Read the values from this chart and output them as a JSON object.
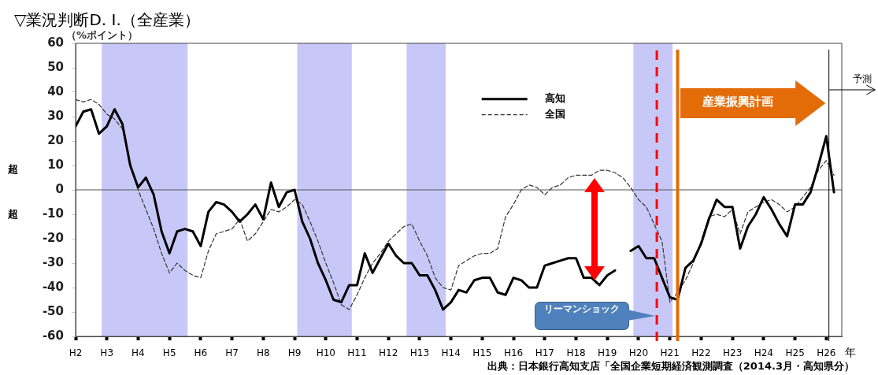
{
  "chart_data": {
    "type": "line",
    "title": "▽業況判断D. I.（全産業）",
    "ylabel": "（%ポイント）",
    "xlabel": "年",
    "annotations": [
      "超",
      "超",
      "出典：日本銀行高知支店「全国企業短期経済観測調査（2014.3月・高知県分）"
    ],
    "x": [
      "1990-01",
      "1990-04",
      "1990-07",
      "1990-10",
      "1991-01",
      "1991-04",
      "1991-07",
      "1991-10",
      "1992-01",
      "1992-04",
      "1992-07",
      "1992-10",
      "1993-01",
      "1993-04",
      "1993-07",
      "1993-10",
      "1994-01",
      "1994-04",
      "1994-07",
      "1994-10",
      "1995-01",
      "1995-04",
      "1995-07",
      "1995-10",
      "1996-01",
      "1996-04",
      "1996-07",
      "1996-10",
      "1997-01",
      "1997-04",
      "1997-07",
      "1997-10",
      "1998-01",
      "1998-04",
      "1998-07",
      "1998-10",
      "1999-01",
      "1999-04",
      "1999-07",
      "1999-10",
      "2000-01",
      "2000-04",
      "2000-07",
      "2000-10",
      "2001-01",
      "2001-04",
      "2001-07",
      "2001-10",
      "2002-01",
      "2002-04",
      "2002-07",
      "2002-10",
      "2003-01",
      "2003-04",
      "2003-07",
      "2003-10",
      "2004-01",
      "2004-04",
      "2004-07",
      "2004-10",
      "2005-01",
      "2005-04",
      "2005-07",
      "2005-10",
      "2006-01",
      "2006-04",
      "2006-07",
      "2006-10",
      "2007-01",
      "2007-04",
      "2007-07",
      "2007-10",
      "2008-01",
      "2008-04",
      "2008-07",
      "2008-10",
      "2009-01",
      "2009-04",
      "2009-07",
      "2009-10",
      "2010-01",
      "2010-04",
      "2010-07",
      "2010-10",
      "2011-01",
      "2011-04",
      "2011-07",
      "2011-10",
      "2012-01",
      "2012-04",
      "2012-07",
      "2012-10",
      "2013-01",
      "2013-04",
      "2013-07",
      "2013-10",
      "2014-01",
      "2014-04"
    ],
    "series": [
      {
        "name": "高知",
        "color": "#000000",
        "line_style": "solid",
        "values": [
          26,
          32,
          33,
          23,
          26,
          33,
          27,
          10,
          1,
          5,
          -2,
          -17,
          -26,
          -17,
          -16,
          -17,
          -23,
          -9,
          -5,
          -6,
          -9,
          -13,
          -10,
          -6,
          -12,
          3,
          -7,
          -1,
          0,
          -13,
          -20,
          -30,
          -37,
          -45,
          -46,
          -39,
          -39,
          -26,
          -34,
          -28,
          -22,
          -27,
          -30,
          -30,
          -35,
          -35,
          -41,
          -49,
          -46,
          -41,
          -42,
          -37,
          -36,
          -36,
          -42,
          -43,
          -36,
          -37,
          -40,
          -40,
          -31,
          -30,
          -29,
          -28,
          -28,
          -36,
          -36,
          -39,
          -35,
          -33,
          null,
          -25,
          -23,
          -28,
          -28,
          -36,
          -44,
          -45,
          -32,
          -29,
          -22,
          -12,
          -4,
          -7,
          -7,
          -24,
          -15,
          -10,
          -3,
          -8,
          -14,
          -19,
          -6,
          -6,
          -1,
          10,
          22,
          -1
        ]
      },
      {
        "name": "全国",
        "color": "#333333",
        "line_style": "dashed",
        "values": [
          37,
          36,
          37,
          35,
          31,
          29,
          25,
          11,
          0,
          -8,
          -16,
          -26,
          -34,
          -30,
          -33,
          -35,
          -36,
          -25,
          -18,
          -17,
          -16,
          -12,
          -21,
          -18,
          -13,
          -8,
          -9,
          -7,
          -4,
          -6,
          -13,
          -21,
          -30,
          -38,
          -47,
          -49,
          -43,
          -36,
          -30,
          -26,
          -21,
          -18,
          -15,
          -14,
          -21,
          -27,
          -36,
          -40,
          -41,
          -31,
          -29,
          -27,
          -26,
          -26,
          -24,
          -11,
          -6,
          0,
          2,
          1,
          -2,
          1,
          2,
          5,
          6,
          6,
          6,
          8,
          8,
          7,
          5,
          1,
          -4,
          -7,
          -14,
          -21,
          -46,
          -42,
          -37,
          -30,
          -21,
          -11,
          -10,
          -11,
          -8,
          -18,
          -9,
          -7,
          -5,
          -4,
          -6,
          -9,
          -7,
          -3,
          1,
          8,
          12,
          6
        ]
      }
    ],
    "xlim": [
      "1990-01",
      "2014-07"
    ],
    "xticks": [
      {
        "value": "1990",
        "label": "H2"
      },
      {
        "value": "1991",
        "label": "H3"
      },
      {
        "value": "1992",
        "label": "H4"
      },
      {
        "value": "1993",
        "label": "H5"
      },
      {
        "value": "1994",
        "label": "H6"
      },
      {
        "value": "1995",
        "label": "H7"
      },
      {
        "value": "1996",
        "label": "H8"
      },
      {
        "value": "1997",
        "label": "H9"
      },
      {
        "value": "1998",
        "label": "H10"
      },
      {
        "value": "1999",
        "label": "H11"
      },
      {
        "value": "2000",
        "label": "H12"
      },
      {
        "value": "2001",
        "label": "H13"
      },
      {
        "value": "2002",
        "label": "H14"
      },
      {
        "value": "2003",
        "label": "H15"
      },
      {
        "value": "2004",
        "label": "H16"
      },
      {
        "value": "2005",
        "label": "H17"
      },
      {
        "value": "2006",
        "label": "H18"
      },
      {
        "value": "2007",
        "label": "H19"
      },
      {
        "value": "2008",
        "label": "H20"
      },
      {
        "value": "2009",
        "label": "H21"
      },
      {
        "value": "2010",
        "label": "H22"
      },
      {
        "value": "2011",
        "label": "H23"
      },
      {
        "value": "2012",
        "label": "H24"
      },
      {
        "value": "2013",
        "label": "H25"
      },
      {
        "value": "2014",
        "label": "H26"
      }
    ],
    "ylim": [
      -60,
      60
    ],
    "yticks": [
      -60,
      -50,
      -40,
      -30,
      -20,
      -10,
      0,
      10,
      20,
      30,
      40,
      50,
      60
    ],
    "bands": [
      {
        "axis": "x",
        "from": "1990-11",
        "to": "1993-08",
        "color": "#c8c8f8"
      },
      {
        "axis": "x",
        "from": "1997-02",
        "to": "1998-11",
        "color": "#c8c8f8"
      },
      {
        "axis": "x",
        "from": "2000-08",
        "to": "2001-11",
        "color": "#c8c8f8"
      },
      {
        "axis": "x",
        "from": "2007-11",
        "to": "2009-02",
        "color": "#c8c8f8"
      }
    ],
    "ref_lines": [
      {
        "axis": "y",
        "value": 0,
        "color": "#555555",
        "line_style": "solid"
      },
      {
        "axis": "x",
        "value": "2008-08",
        "label": "リーマンショック",
        "color": "#ff0000",
        "line_style": "dashed"
      },
      {
        "axis": "x",
        "value": "2009-04",
        "label": "産業振興計画",
        "color": "#e36c09",
        "line_style": "solid"
      },
      {
        "axis": "x",
        "value": "2014-02",
        "label": "予測",
        "color": "#000000",
        "line_style": "solid"
      }
    ],
    "grid": false,
    "legend": "top"
  }
}
